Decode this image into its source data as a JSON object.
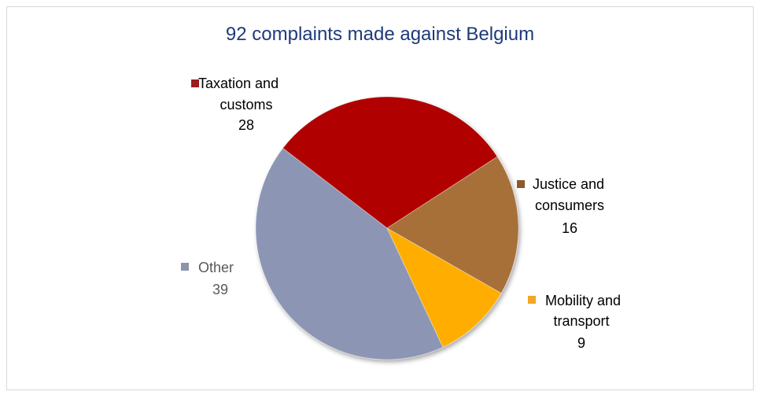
{
  "chart_data": {
    "type": "pie",
    "title": "92 complaints made against Belgium",
    "total": 92,
    "slices": [
      {
        "label_lines": [
          "Taxation and",
          "customs"
        ],
        "value": 28,
        "color": "#b00000",
        "legend_marker_color": "#9b1d1d"
      },
      {
        "label_lines": [
          "Justice and",
          "consumers"
        ],
        "value": 16,
        "color": "#a77038",
        "legend_marker_color": "#8b5a2b"
      },
      {
        "label_lines": [
          "Mobility and",
          "transport"
        ],
        "value": 9,
        "color": "#ffad00",
        "legend_marker_color": "#f5a623"
      },
      {
        "label_lines": [
          "Other"
        ],
        "value": 39,
        "color": "#8c96b4",
        "legend_marker_color": "#8d94ad"
      }
    ],
    "legend": "labels next to slices"
  }
}
